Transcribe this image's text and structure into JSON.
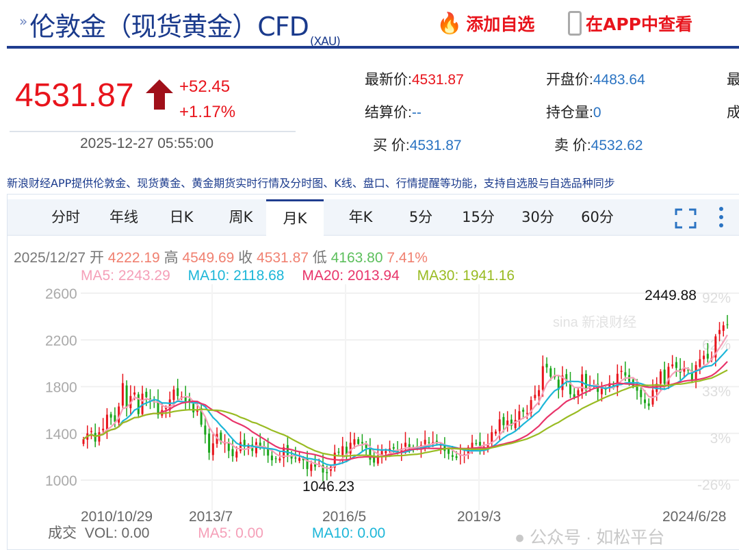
{
  "header": {
    "title": "伦敦金（现货黄金）CFD",
    "code": "(XAU)",
    "add_watchlist": "添加自选",
    "view_in_app": "在APP中查看"
  },
  "quote": {
    "price": "4531.87",
    "change": "+52.45",
    "change_pct": "+1.17%",
    "time": "2025-12-27 05:55:00",
    "direction": "up"
  },
  "stats": [
    {
      "label": "最新价:",
      "value": "4531.87",
      "color": "red"
    },
    {
      "label": "开盘价:",
      "value": "4483.64"
    },
    {
      "label": "最",
      "value": ""
    },
    {
      "label": "结算价:",
      "value": "--"
    },
    {
      "label": "持仓量:",
      "value": "0"
    },
    {
      "label": "成",
      "value": ""
    },
    {
      "label": "买  价:",
      "value": "4531.87"
    },
    {
      "label": "卖  价:",
      "value": "4532.62"
    }
  ],
  "description": "新浪财经APP提供伦敦金、现货黄金、黄金期货实时行情及分时图、K线、盘口、行情提醒等功能，支持自选股与自选品种同步",
  "tabs": [
    {
      "label": "分时"
    },
    {
      "label": "年线"
    },
    {
      "label": "日K"
    },
    {
      "label": "周K"
    },
    {
      "label": "月K",
      "active": true
    },
    {
      "label": "年K"
    },
    {
      "label": "5分"
    },
    {
      "label": "15分"
    },
    {
      "label": "30分"
    },
    {
      "label": "60分"
    }
  ],
  "info": {
    "date": "2025/12/27",
    "open_label": "开",
    "open": "4222.19",
    "high_label": "高",
    "high": "4549.69",
    "close_label": "收",
    "close": "4531.87",
    "low_label": "低",
    "low": "4163.80",
    "pct": "7.41%"
  },
  "ma": {
    "ma5": "MA5: 2243.29",
    "ma10": "MA10: 2118.68",
    "ma20": "MA20: 2013.94",
    "ma30": "MA30: 1941.16"
  },
  "volume": {
    "label": "成交",
    "vol": "VOL: 0.00",
    "ma5": "MA5: 0.00",
    "ma10": "MA10: 0.00"
  },
  "watermark": {
    "sina": "sina 新浪财经",
    "wechat": "公众号 · 如松平台"
  },
  "colors": {
    "up": "#e8141c",
    "down": "#1aa51a",
    "ma5": "#f59fb8",
    "ma10": "#1cb6d8",
    "ma20": "#e8346a",
    "ma30": "#99bb22",
    "brand": "#1f3d8f"
  },
  "chart_data": {
    "type": "candlestick",
    "period": "monthly",
    "ylim": [
      900,
      2650
    ],
    "yticks": [
      1000,
      1400,
      1800,
      2200,
      2600
    ],
    "right_ticks": [
      "-26%",
      "3%",
      "33%",
      "62%",
      "92%"
    ],
    "xticks": [
      "2010/10/29",
      "2013/7",
      "2016/5",
      "2019/3",
      "2024/6/28"
    ],
    "max_label": "2449.88",
    "min_label": "1046.23",
    "grid": true,
    "closes": [
      1350,
      1400,
      1420,
      1330,
      1410,
      1440,
      1560,
      1535,
      1500,
      1630,
      1830,
      1620,
      1720,
      1750,
      1565,
      1740,
      1710,
      1670,
      1665,
      1560,
      1600,
      1620,
      1690,
      1775,
      1720,
      1715,
      1675,
      1665,
      1580,
      1595,
      1475,
      1390,
      1235,
      1315,
      1395,
      1325,
      1325,
      1250,
      1205,
      1245,
      1325,
      1285,
      1295,
      1250,
      1325,
      1280,
      1285,
      1210,
      1170,
      1180,
      1185,
      1280,
      1215,
      1185,
      1185,
      1190,
      1170,
      1095,
      1135,
      1115,
      1140,
      1065,
      1060,
      1115,
      1235,
      1235,
      1290,
      1215,
      1320,
      1350,
      1310,
      1315,
      1275,
      1175,
      1150,
      1210,
      1250,
      1250,
      1270,
      1270,
      1240,
      1270,
      1320,
      1280,
      1270,
      1275,
      1300,
      1345,
      1320,
      1325,
      1315,
      1300,
      1250,
      1225,
      1200,
      1190,
      1215,
      1220,
      1280,
      1320,
      1315,
      1295,
      1285,
      1305,
      1410,
      1415,
      1520,
      1470,
      1510,
      1465,
      1515,
      1590,
      1585,
      1575,
      1685,
      1730,
      1770,
      1975,
      1965,
      1885,
      1880,
      1775,
      1895,
      1850,
      1735,
      1710,
      1770,
      1905,
      1770,
      1815,
      1815,
      1755,
      1785,
      1775,
      1830,
      1795,
      1910,
      1935,
      1895,
      1840,
      1805,
      1765,
      1710,
      1660,
      1635,
      1770,
      1825,
      1930,
      1825,
      1970,
      1990,
      1960,
      1920,
      1965,
      1940,
      1850,
      1985,
      2035,
      2065,
      2040,
      2045,
      2230,
      2285,
      2325,
      2330
    ]
  }
}
